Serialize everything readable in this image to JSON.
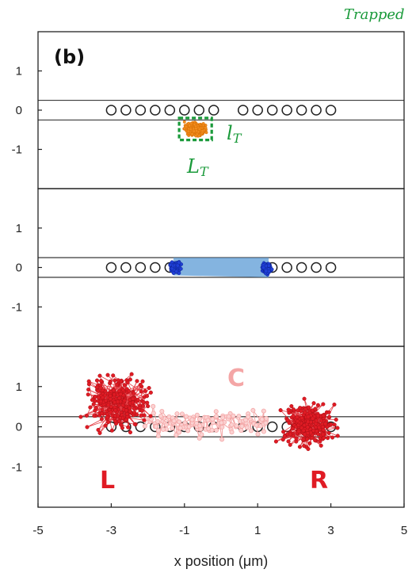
{
  "chart_data": {
    "type": "scatter",
    "xlabel": "x position (μm)",
    "xlim": [
      -5,
      5
    ],
    "x_ticks": [
      "-5",
      "-3",
      "-1",
      "1",
      "3",
      "5"
    ],
    "annotations": {
      "corner": "Trapped",
      "panel": "(b)",
      "width_label": "l",
      "width_sub": "T",
      "length_label": "L",
      "length_sub": "T",
      "center_label": "C",
      "left_label": "L",
      "right_label": "R"
    },
    "colors": {
      "trap_cloud": "#f28c1e",
      "trap_box": "#1a9a3a",
      "blue_cloud": "#1f3fd6",
      "blue_band": "#5b9bd5",
      "red_traj": "#e01b24",
      "pink_traj": "#f4a6a6",
      "pore_circle": "#222222"
    },
    "panels": [
      {
        "id": "top",
        "ylim": [
          -2,
          2
        ],
        "y_ticks": [
          "1",
          "0",
          "-1"
        ],
        "channel_walls": [
          0.25,
          -0.25
        ],
        "pore_x": [
          -3.0,
          -2.6,
          -2.2,
          -1.8,
          -1.4,
          -1.0,
          -0.6,
          -0.2,
          0.6,
          1.0,
          1.4,
          1.8,
          2.2,
          2.6,
          3.0
        ],
        "trap_cluster": {
          "x_center": -0.7,
          "y_center": -0.48,
          "x_halfwidth": 0.38,
          "y_halfwidth": 0.22
        }
      },
      {
        "id": "middle",
        "ylim": [
          -2,
          2
        ],
        "y_ticks": [
          "1",
          "0",
          "-1"
        ],
        "channel_walls": [
          0.25,
          -0.25
        ],
        "pore_x": [
          -3.0,
          -2.6,
          -2.2,
          -1.8,
          -1.4,
          1.4,
          1.8,
          2.2,
          2.6,
          3.0
        ],
        "blue_clusters": [
          {
            "x_center": -1.25,
            "y_center": 0.0,
            "radius": 0.22
          },
          {
            "x_center": 1.25,
            "y_center": -0.02,
            "radius": 0.22
          }
        ],
        "band": {
          "x_start": -1.3,
          "x_end": 1.3,
          "y_top": 0.25,
          "y_bottom": -0.2
        }
      },
      {
        "id": "bottom",
        "ylim": [
          -2,
          2
        ],
        "y_ticks": [
          "1",
          "0",
          "-1"
        ],
        "channel_walls": [
          0.25,
          -0.25
        ],
        "pore_x": [
          -3.0,
          -2.6,
          -2.2,
          -1.8,
          -1.4,
          -1.0,
          -0.6,
          -0.2,
          0.6,
          1.0,
          1.4,
          1.8,
          2.2,
          2.6,
          3.0
        ],
        "left_cloud": {
          "x_center": -2.8,
          "y_center": 0.6,
          "x_halfwidth": 1.2,
          "y_halfwidth": 0.9
        },
        "right_cloud": {
          "x_center": 2.4,
          "y_center": 0.05,
          "x_halfwidth": 1.0,
          "y_halfwidth": 0.75
        },
        "center_path": {
          "x_start": -2.0,
          "x_end": 1.2,
          "y_center": 0.1,
          "y_halfwidth": 0.45
        }
      }
    ]
  }
}
